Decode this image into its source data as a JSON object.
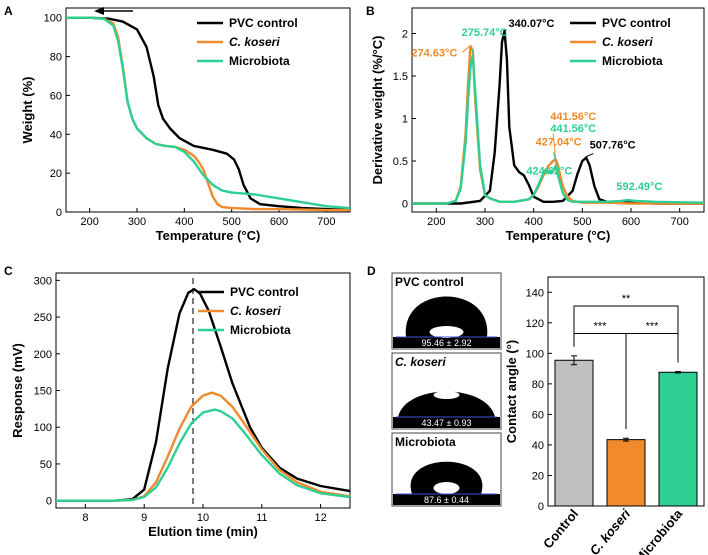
{
  "colors": {
    "pvc": "#000000",
    "ckoseri": "#f08a2c",
    "microbiota": "#2ecf92",
    "bar_control": "#bfbfbf",
    "dashed": "#333333",
    "arrow": "#000000"
  },
  "chart_data": [
    {
      "panel": "A",
      "type": "line",
      "xlabel": "Temperature (°C)",
      "ylabel": "Weight (%)",
      "xlim": [
        150,
        750
      ],
      "ylim": [
        0,
        105
      ],
      "xticks": [
        "200",
        "300",
        "400",
        "500",
        "600",
        "700"
      ],
      "yticks": [
        "0",
        "20",
        "40",
        "60",
        "80",
        "100"
      ],
      "legend": [
        "PVC control",
        "C. koseri",
        "Microbiota"
      ],
      "series": [
        {
          "name": "PVC control",
          "x": [
            150,
            200,
            240,
            270,
            300,
            320,
            335,
            345,
            355,
            370,
            390,
            420,
            460,
            490,
            505,
            515,
            525,
            540,
            560,
            600,
            650,
            700,
            750
          ],
          "y": [
            100,
            100,
            99.5,
            98,
            94,
            85,
            70,
            55,
            48,
            43,
            38,
            34,
            32,
            30,
            27,
            22,
            14,
            7,
            4,
            3,
            2,
            1.5,
            1
          ]
        },
        {
          "name": "C. koseri",
          "x": [
            150,
            200,
            230,
            250,
            260,
            270,
            280,
            290,
            300,
            320,
            340,
            360,
            380,
            400,
            420,
            430,
            440,
            450,
            460,
            470,
            480,
            500,
            550,
            600,
            700,
            750
          ],
          "y": [
            100,
            100,
            99.5,
            97,
            90,
            75,
            57,
            48,
            43,
            38,
            35,
            34,
            33.5,
            32,
            29,
            26,
            22,
            15,
            8,
            4,
            2.5,
            2,
            1.5,
            1.5,
            1,
            1
          ]
        },
        {
          "name": "Microbiota",
          "x": [
            150,
            200,
            230,
            250,
            260,
            270,
            280,
            290,
            300,
            320,
            340,
            360,
            380,
            400,
            420,
            440,
            460,
            480,
            500,
            550,
            600,
            650,
            700,
            750
          ],
          "y": [
            100,
            100,
            99.5,
            96,
            88,
            74,
            57,
            48,
            43,
            38,
            35,
            34,
            33.5,
            31,
            26,
            19,
            14,
            11,
            10,
            9,
            7,
            5,
            3,
            2
          ]
        }
      ],
      "annotations": []
    },
    {
      "panel": "B",
      "type": "line",
      "xlabel": "Temperature (°C)",
      "ylabel": "Derivative weight (%/°C)",
      "xlim": [
        150,
        750
      ],
      "ylim": [
        -0.1,
        2.3
      ],
      "xticks": [
        "200",
        "300",
        "400",
        "500",
        "600",
        "700"
      ],
      "yticks": [
        "0",
        "0.5",
        "1",
        "1.5",
        "2"
      ],
      "legend": [
        "PVC control",
        "C. koseri",
        "Microbiota"
      ],
      "series": [
        {
          "name": "PVC control",
          "x": [
            150,
            250,
            290,
            310,
            320,
            330,
            335,
            340,
            345,
            350,
            360,
            370,
            380,
            390,
            400,
            420,
            440,
            460,
            480,
            490,
            500,
            508,
            515,
            525,
            535,
            550,
            600,
            650,
            750
          ],
          "y": [
            0,
            0,
            0.03,
            0.15,
            0.6,
            1.4,
            1.9,
            2.03,
            1.7,
            0.9,
            0.45,
            0.37,
            0.33,
            0.22,
            0.08,
            0.02,
            0.02,
            0.03,
            0.15,
            0.35,
            0.5,
            0.54,
            0.45,
            0.2,
            0.05,
            0.02,
            0.01,
            0,
            0
          ]
        },
        {
          "name": "C. koseri",
          "x": [
            150,
            220,
            240,
            250,
            260,
            265,
            270,
            275,
            280,
            290,
            300,
            310,
            330,
            360,
            390,
            400,
            410,
            420,
            430,
            440,
            445,
            450,
            455,
            460,
            470,
            480,
            500,
            550,
            600,
            750
          ],
          "y": [
            0,
            0,
            0.03,
            0.2,
            0.8,
            1.4,
            1.85,
            1.8,
            1.2,
            0.4,
            0.1,
            0.06,
            0.02,
            0.02,
            0.05,
            0.1,
            0.2,
            0.33,
            0.44,
            0.5,
            0.52,
            0.45,
            0.32,
            0.2,
            0.08,
            0.03,
            0.01,
            0.01,
            0,
            0
          ]
        },
        {
          "name": "Microbiota",
          "x": [
            150,
            220,
            240,
            250,
            260,
            265,
            270,
            275,
            280,
            290,
            300,
            310,
            330,
            360,
            390,
            400,
            410,
            420,
            425,
            430,
            440,
            445,
            450,
            460,
            470,
            480,
            500,
            550,
            580,
            592,
            610,
            650,
            750
          ],
          "y": [
            0,
            0,
            0.03,
            0.18,
            0.7,
            1.2,
            1.6,
            1.75,
            1.3,
            0.45,
            0.1,
            0.06,
            0.02,
            0.02,
            0.05,
            0.1,
            0.22,
            0.36,
            0.4,
            0.36,
            0.38,
            0.44,
            0.33,
            0.12,
            0.04,
            0.02,
            0.02,
            0.02,
            0.03,
            0.04,
            0.03,
            0.02,
            0.01
          ]
        }
      ],
      "annotations": [
        {
          "text": "340.07°C",
          "series": "PVC control",
          "x": 340,
          "y": 2.03
        },
        {
          "text": "274.63°C",
          "series": "C. koseri",
          "x": 271,
          "y": 1.85
        },
        {
          "text": "275.74°C",
          "series": "Microbiota",
          "x": 276,
          "y": 1.75
        },
        {
          "text": "441.56°C",
          "series": "C. koseri",
          "x": 445,
          "y": 0.52
        },
        {
          "text": "441.56°C",
          "series": "Microbiota",
          "x": 446,
          "y": 0.44
        },
        {
          "text": "427.04°C",
          "series": "C. koseri",
          "x": 427,
          "y": 0.4
        },
        {
          "text": "424.62°C",
          "series": "Microbiota",
          "x": 425,
          "y": 0.4
        },
        {
          "text": "507.76°C",
          "series": "PVC control",
          "x": 508,
          "y": 0.54
        },
        {
          "text": "592.49°C",
          "series": "Microbiota",
          "x": 592,
          "y": 0.04
        }
      ]
    },
    {
      "panel": "C",
      "type": "line",
      "xlabel": "Elution time (min)",
      "ylabel": "Response (mV)",
      "xlim": [
        7.5,
        12.5
      ],
      "ylim": [
        -10,
        310
      ],
      "xticks": [
        "8",
        "9",
        "10",
        "11",
        "12"
      ],
      "yticks": [
        "0",
        "50",
        "100",
        "150",
        "200",
        "250",
        "300"
      ],
      "legend": [
        "PVC control",
        "C. koseri",
        "Microbiota"
      ],
      "dashed_line_x": 9.83,
      "series": [
        {
          "name": "PVC control",
          "x": [
            7.5,
            8.5,
            8.8,
            9.0,
            9.2,
            9.4,
            9.6,
            9.75,
            9.85,
            9.95,
            10.1,
            10.3,
            10.5,
            10.8,
            11.0,
            11.3,
            11.6,
            12.0,
            12.5
          ],
          "y": [
            0,
            0,
            2,
            15,
            80,
            180,
            255,
            283,
            288,
            282,
            258,
            210,
            160,
            100,
            72,
            45,
            30,
            20,
            13
          ]
        },
        {
          "name": "C. koseri",
          "x": [
            7.5,
            8.5,
            8.8,
            9.0,
            9.2,
            9.4,
            9.6,
            9.8,
            10.0,
            10.15,
            10.3,
            10.5,
            10.7,
            11.0,
            11.3,
            11.6,
            12.0,
            12.5
          ],
          "y": [
            0,
            0,
            1,
            6,
            25,
            60,
            98,
            128,
            143,
            147,
            143,
            128,
            105,
            70,
            42,
            25,
            12,
            6
          ]
        },
        {
          "name": "Microbiota",
          "x": [
            7.5,
            8.5,
            8.8,
            9.0,
            9.2,
            9.4,
            9.6,
            9.8,
            10.0,
            10.2,
            10.3,
            10.5,
            10.7,
            11.0,
            11.3,
            11.6,
            12.0,
            12.5
          ],
          "y": [
            0,
            0,
            1,
            5,
            18,
            45,
            78,
            105,
            120,
            124,
            122,
            112,
            93,
            62,
            37,
            21,
            10,
            5
          ]
        }
      ]
    },
    {
      "panel": "D",
      "type": "bar",
      "ylabel": "Contact angle (°)",
      "ylim": [
        0,
        150
      ],
      "yticks": [
        "0",
        "20",
        "40",
        "60",
        "80",
        "100",
        "120",
        "140"
      ],
      "categories": [
        "Control",
        "C. koseri",
        "Microbiota"
      ],
      "values": [
        95.46,
        43.47,
        87.6
      ],
      "errors": [
        2.92,
        0.93,
        0.44
      ],
      "significance": [
        {
          "pair": [
            "Control",
            "Microbiota"
          ],
          "label": "**",
          "y": 131
        },
        {
          "pair": [
            "Control",
            "C. koseri"
          ],
          "label": "***",
          "y": 113
        },
        {
          "pair": [
            "C. koseri",
            "Microbiota"
          ],
          "label": "***",
          "y": 113
        }
      ]
    }
  ],
  "droplet_images": [
    {
      "title": "PVC control",
      "caption": "95.46 ± 2.92"
    },
    {
      "title": "C. koseri",
      "caption": "43.47 ± 0.93"
    },
    {
      "title": "Microbiota",
      "caption": "87.6 ± 0.44"
    }
  ]
}
